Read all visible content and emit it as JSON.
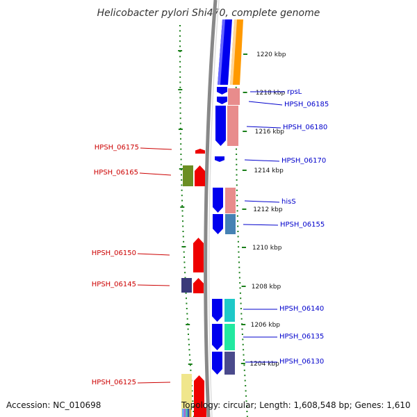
{
  "title": "Helicobacter pylori Shi470, complete genome",
  "footer": {
    "accession": "Accession: NC_010698",
    "topology": "Topology: circular; Length: 1,608,548 bp; Genes: 1,610"
  },
  "colors": {
    "forward_label": "#0000cc",
    "reverse_label": "#cc0000",
    "backbone": "#888888",
    "dotted_ring": "#1a7f1a",
    "orange_band": "#ff9900",
    "forward_gene": "#0000ee",
    "reverse_gene": "#ee0000"
  },
  "kbp_ticks": [
    {
      "label": "1220 kbp"
    },
    {
      "label": "1218 kbp"
    },
    {
      "label": "1216 kbp"
    },
    {
      "label": "1214 kbp"
    },
    {
      "label": "1212 kbp"
    },
    {
      "label": "1210 kbp"
    },
    {
      "label": "1208 kbp"
    },
    {
      "label": "1206 kbp"
    },
    {
      "label": "1204 kbp"
    }
  ],
  "forward_labels": [
    {
      "text": "rpsL"
    },
    {
      "text": "HPSH_06185"
    },
    {
      "text": "HPSH_06180"
    },
    {
      "text": "HPSH_06170"
    },
    {
      "text": "hisS"
    },
    {
      "text": "HPSH_06155"
    },
    {
      "text": "HPSH_06140"
    },
    {
      "text": "HPSH_06135"
    },
    {
      "text": "HPSH_06130"
    }
  ],
  "reverse_labels": [
    {
      "text": "HPSH_06175"
    },
    {
      "text": "HPSH_06165"
    },
    {
      "text": "HPSH_06150"
    },
    {
      "text": "HPSH_06145"
    },
    {
      "text": "HPSH_06125"
    }
  ],
  "forward_genes": [
    {
      "name": "fwd-gene-a",
      "color": "#0000ee"
    },
    {
      "name": "fwd-gene-rpsl",
      "color": "#0000ee"
    },
    {
      "name": "fwd-gene-06185",
      "color": "#0000ee"
    },
    {
      "name": "fwd-gene-06180",
      "color": "#0000ee"
    },
    {
      "name": "fwd-gene-06170",
      "color": "#0000ee"
    },
    {
      "name": "fwd-gene-hiss",
      "color": "#0000ee"
    },
    {
      "name": "fwd-gene-06155",
      "color": "#0000ee"
    },
    {
      "name": "fwd-gene-06140",
      "color": "#0000ee"
    },
    {
      "name": "fwd-gene-06135",
      "color": "#0000ee"
    },
    {
      "name": "fwd-gene-06130",
      "color": "#0000ee"
    }
  ],
  "forward_cog_boxes": [
    {
      "name": "cog-box-orange",
      "color": "#ff9900"
    },
    {
      "name": "cog-box-pink-a",
      "color": "#e88c8c"
    },
    {
      "name": "cog-box-pink-b",
      "color": "#e88c8c"
    },
    {
      "name": "cog-box-steelblue",
      "color": "#4682b4"
    },
    {
      "name": "cog-box-cyan",
      "color": "#1ec8c8"
    },
    {
      "name": "cog-box-green",
      "color": "#22e8a0"
    },
    {
      "name": "cog-box-slate",
      "color": "#4a4a8c"
    }
  ],
  "reverse_genes": [
    {
      "name": "rev-gene-06175",
      "color": "#ee0000"
    },
    {
      "name": "rev-gene-06165",
      "color": "#ee0000"
    },
    {
      "name": "rev-gene-06150",
      "color": "#ee0000"
    },
    {
      "name": "rev-gene-06145",
      "color": "#ee0000"
    },
    {
      "name": "rev-gene-06125",
      "color": "#ee0000"
    }
  ],
  "reverse_cog_boxes": [
    {
      "name": "cog-box-olive",
      "color": "#6b8e23"
    },
    {
      "name": "cog-box-navy",
      "color": "#3a3a7a"
    },
    {
      "name": "cog-box-khaki",
      "color": "#f0e68c"
    }
  ]
}
